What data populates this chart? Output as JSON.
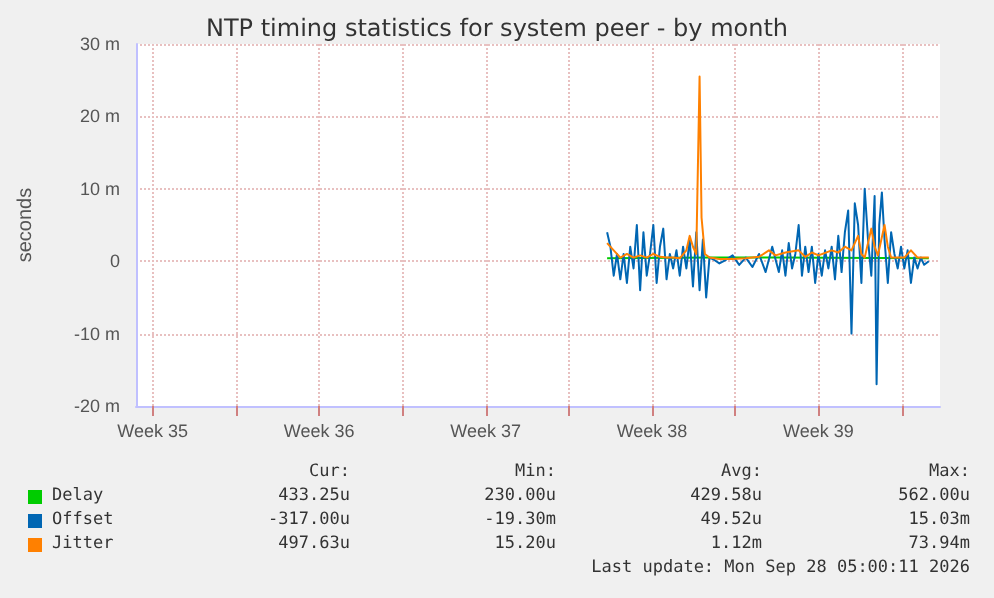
{
  "chart_data": {
    "type": "line",
    "title": "NTP timing statistics for system peer - by month",
    "ylabel": "seconds",
    "xlim": [
      "2026-08-26T19:10",
      "2026-09-29T14:40"
    ],
    "xticks": [
      {
        "value": "2026-08-27T12:00",
        "label": "Week 35"
      },
      {
        "value": "2026-08-31",
        "label": null
      },
      {
        "value": "2026-09-03T12:00",
        "label": "Week 36"
      },
      {
        "value": "2026-09-07",
        "label": null
      },
      {
        "value": "2026-09-10T12:00",
        "label": "Week 37"
      },
      {
        "value": "2026-09-14",
        "label": null
      },
      {
        "value": "2026-09-17T12:00",
        "label": "Week 38"
      },
      {
        "value": "2026-09-21",
        "label": null
      },
      {
        "value": "2026-09-24T12:00",
        "label": "Week 39"
      },
      {
        "value": "2026-09-28",
        "label": null
      }
    ],
    "ylim": [
      -20,
      30
    ],
    "yticks": [
      {
        "value": -20,
        "label": "-20 m"
      },
      {
        "value": -10,
        "label": "-10 m"
      },
      {
        "value": 0,
        "label": "0"
      },
      {
        "value": 10,
        "label": "10 m"
      },
      {
        "value": 20,
        "label": "20 m"
      },
      {
        "value": 30,
        "label": "30 m"
      }
    ],
    "grid": true,
    "legend": "bottom",
    "marker": "none",
    "line_style": "solid",
    "series": [
      {
        "name": "Delay",
        "color": "#00cc00",
        "x": [
          "2026-09-15T14:40",
          "2026-09-20T01:20",
          "2026-09-22T20:00",
          "2026-09-29T03:20"
        ],
        "values": [
          0.4,
          0.5,
          0.5,
          0.4
        ]
      },
      {
        "name": "Offset",
        "color": "#0066b3",
        "x": [
          "2026-09-15T14:40",
          "2026-09-15T18:00",
          "2026-09-15T21:20",
          "2026-09-16T00:40",
          "2026-09-16T04:00",
          "2026-09-16T07:20",
          "2026-09-16T10:40",
          "2026-09-16T14:00",
          "2026-09-16T17:20",
          "2026-09-16T20:40",
          "2026-09-17T00:00",
          "2026-09-17T03:20",
          "2026-09-17T06:40",
          "2026-09-17T10:00",
          "2026-09-17T13:20",
          "2026-09-17T16:40",
          "2026-09-17T20:00",
          "2026-09-17T23:20",
          "2026-09-18T02:40",
          "2026-09-18T06:00",
          "2026-09-18T09:20",
          "2026-09-18T12:40",
          "2026-09-18T16:00",
          "2026-09-18T19:20",
          "2026-09-18T22:40",
          "2026-09-19T02:00",
          "2026-09-19T05:20",
          "2026-09-19T08:40",
          "2026-09-19T12:00",
          "2026-09-19T15:20",
          "2026-09-19T18:40",
          "2026-09-19T22:00",
          "2026-09-20T01:20",
          "2026-09-20T08:00",
          "2026-09-20T14:40",
          "2026-09-20T21:20",
          "2026-09-21T04:00",
          "2026-09-21T10:40",
          "2026-09-21T17:20",
          "2026-09-22T00:00",
          "2026-09-22T06:40",
          "2026-09-22T13:20",
          "2026-09-22T20:00",
          "2026-09-22T23:20",
          "2026-09-23T02:40",
          "2026-09-23T06:00",
          "2026-09-23T09:20",
          "2026-09-23T12:40",
          "2026-09-23T16:00",
          "2026-09-23T19:20",
          "2026-09-23T22:40",
          "2026-09-24T02:00",
          "2026-09-24T05:20",
          "2026-09-24T08:40",
          "2026-09-24T12:00",
          "2026-09-24T15:20",
          "2026-09-24T18:40",
          "2026-09-24T22:00",
          "2026-09-25T01:20",
          "2026-09-25T04:40",
          "2026-09-25T08:00",
          "2026-09-25T11:20",
          "2026-09-25T14:40",
          "2026-09-25T18:00",
          "2026-09-25T21:20",
          "2026-09-26T00:40",
          "2026-09-26T04:00",
          "2026-09-26T07:20",
          "2026-09-26T10:40",
          "2026-09-26T14:00",
          "2026-09-26T17:20",
          "2026-09-26T20:40",
          "2026-09-26T22:40",
          "2026-09-27T01:20",
          "2026-09-27T04:00",
          "2026-09-27T06:40",
          "2026-09-27T10:00",
          "2026-09-27T13:20",
          "2026-09-27T16:40",
          "2026-09-27T20:00",
          "2026-09-27T23:20",
          "2026-09-28T02:40",
          "2026-09-28T06:00",
          "2026-09-28T09:20",
          "2026-09-28T12:40",
          "2026-09-28T16:00",
          "2026-09-28T19:20",
          "2026-09-28T22:40",
          "2026-09-29T03:20"
        ],
        "values": [
          4,
          2,
          -2,
          1,
          -2.5,
          1,
          -3,
          2,
          -1,
          5,
          -4,
          4,
          -2,
          1,
          5,
          -3,
          2,
          4.5,
          -2.5,
          1,
          -1,
          1.5,
          -2,
          2,
          -1,
          3,
          -3.5,
          4,
          -4,
          3,
          -5,
          0.5,
          0.3,
          -0.3,
          0.2,
          0.8,
          -0.5,
          0.5,
          -0.8,
          1,
          -1.5,
          2,
          -1.5,
          1.5,
          -2,
          2.5,
          -1,
          1,
          5,
          -2,
          2,
          -1.5,
          2,
          -3,
          1,
          -2,
          1.5,
          -1,
          2,
          -2.5,
          3.5,
          -1.5,
          4,
          7,
          -10,
          8,
          5,
          -3,
          10,
          3,
          -2,
          9,
          -17,
          5,
          9.5,
          3,
          -3,
          4,
          1,
          -1,
          2,
          -1,
          1.5,
          -3,
          0.5,
          -1,
          0.5,
          -0.5,
          0
        ]
      },
      {
        "name": "Jitter",
        "color": "#ff8000",
        "x": [
          "2026-09-15T14:40",
          "2026-09-15T21:20",
          "2026-09-16T04:00",
          "2026-09-16T10:40",
          "2026-09-16T17:20",
          "2026-09-17T00:00",
          "2026-09-17T06:40",
          "2026-09-17T13:20",
          "2026-09-17T20:00",
          "2026-09-18T02:40",
          "2026-09-18T09:20",
          "2026-09-18T16:00",
          "2026-09-18T22:40",
          "2026-09-19T02:00",
          "2026-09-19T05:20",
          "2026-09-19T08:40",
          "2026-09-19T12:00",
          "2026-09-19T14:00",
          "2026-09-19T17:20",
          "2026-09-19T22:00",
          "2026-09-20T08:00",
          "2026-09-20T21:20",
          "2026-09-21T10:40",
          "2026-09-22T00:00",
          "2026-09-22T10:00",
          "2026-09-22T16:40",
          "2026-09-23T02:40",
          "2026-09-23T16:00",
          "2026-09-23T22:40",
          "2026-09-24T05:20",
          "2026-09-24T12:00",
          "2026-09-25T01:20",
          "2026-09-25T08:00",
          "2026-09-25T14:40",
          "2026-09-25T21:20",
          "2026-09-26T04:00",
          "2026-09-26T07:20",
          "2026-09-26T10:40",
          "2026-09-26T17:20",
          "2026-09-26T20:40",
          "2026-09-27T00:00",
          "2026-09-27T06:40",
          "2026-09-27T10:00",
          "2026-09-27T13:20",
          "2026-09-27T20:00",
          "2026-09-28T02:40",
          "2026-09-28T09:20",
          "2026-09-28T16:00",
          "2026-09-29T03:20"
        ],
        "values": [
          2.5,
          1.5,
          0.5,
          1,
          0.5,
          0.8,
          0.5,
          1,
          0.6,
          0.5,
          0.5,
          0.4,
          1.5,
          3.5,
          2,
          1,
          25.5,
          6,
          1,
          0.5,
          0.3,
          0.3,
          0.4,
          0.6,
          1.5,
          0.8,
          1.2,
          1.5,
          0.6,
          1.2,
          0.8,
          1.5,
          1.2,
          2,
          1.5,
          3.5,
          1,
          0.5,
          4.5,
          2,
          0.8,
          5,
          2,
          0.5,
          0.5,
          0.5,
          1.5,
          0.5,
          0.5
        ]
      }
    ],
    "annotations": [
      "Cur:",
      "Min:",
      "Avg:",
      "Max:",
      "433.25u",
      "230.00u",
      "429.58u",
      "562.00u",
      "-317.00u",
      "-19.30m",
      "49.52u",
      "15.03m",
      "497.63u",
      "15.20u",
      "1.12m",
      "73.94m",
      "Last update: Mon Sep 28 05:00:11 2026"
    ]
  }
}
